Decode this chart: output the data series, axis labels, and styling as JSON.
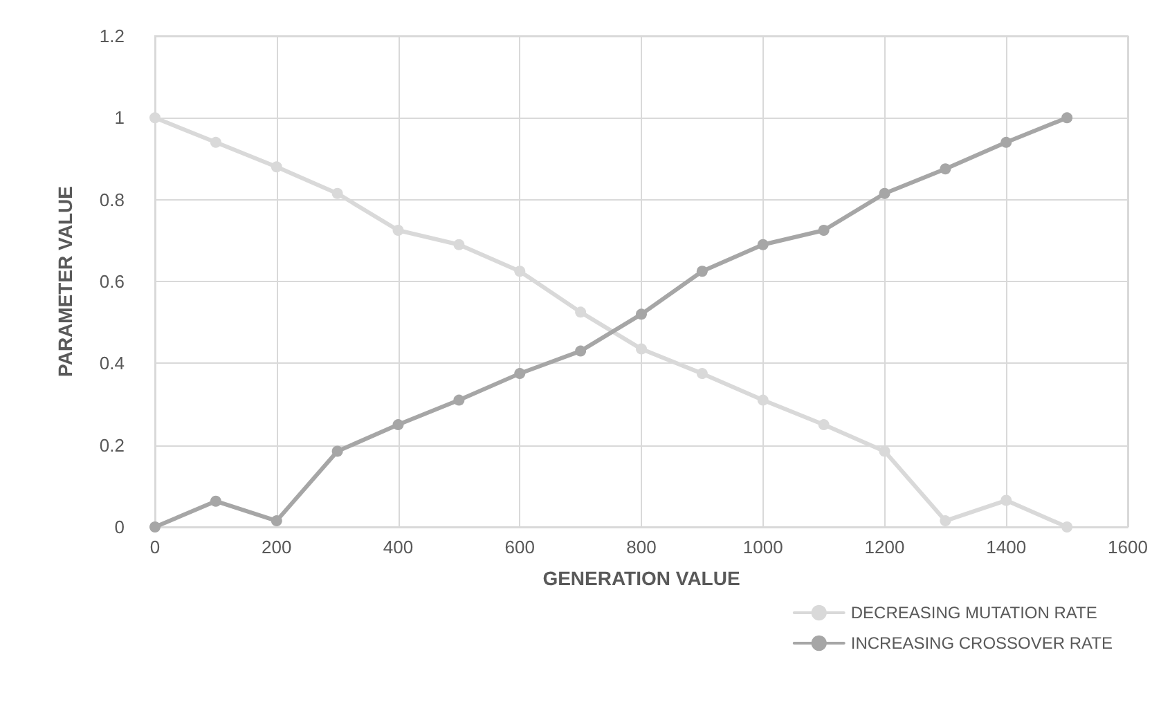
{
  "chart_data": {
    "type": "line",
    "xlabel": "GENERATION VALUE",
    "ylabel": "PARAMETER VALUE",
    "x": [
      0,
      100,
      200,
      300,
      400,
      500,
      600,
      700,
      800,
      900,
      1000,
      1100,
      1200,
      1300,
      1400,
      1500
    ],
    "series": [
      {
        "name": "DECREASING MUTATION RATE",
        "color": "#d9d9d9",
        "values": [
          1,
          0.94,
          0.88,
          0.815,
          0.725,
          0.69,
          0.625,
          0.525,
          0.435,
          0.375,
          0.31,
          0.25,
          0.185,
          0.015,
          0.065,
          0
        ]
      },
      {
        "name": "INCREASING CROSSOVER RATE",
        "color": "#a6a6a6",
        "values": [
          0,
          0.063,
          0.015,
          0.185,
          0.25,
          0.31,
          0.375,
          0.43,
          0.52,
          0.625,
          0.69,
          0.725,
          0.815,
          0.875,
          0.94,
          1
        ]
      }
    ],
    "xlim": [
      0,
      1600
    ],
    "xticks": [
      0,
      200,
      400,
      600,
      800,
      1000,
      1200,
      1400,
      1600
    ],
    "ylim": [
      0,
      1.2
    ],
    "yticks": [
      0,
      0.2,
      0.4,
      0.6,
      0.8,
      1,
      1.2
    ],
    "grid": true,
    "legend": "bottom right",
    "marker": "circle",
    "line_style": "solid"
  }
}
